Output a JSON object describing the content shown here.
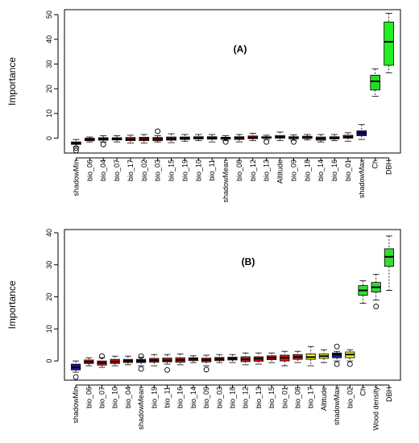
{
  "chart_data": [
    {
      "type": "box",
      "panel_label": "(A)",
      "ylabel": "Importance",
      "ylim": [
        -6,
        52
      ],
      "yticks": [
        0,
        10,
        20,
        30,
        40,
        50
      ],
      "grid": false,
      "categories": [
        "shadowMin",
        "bio_06",
        "bio_04",
        "bio_07",
        "bio_17",
        "bio_02",
        "bio_03",
        "bio_15",
        "bio_19",
        "bio_10",
        "bio_11",
        "shadowMean",
        "bio_08",
        "bio_12",
        "bio_13",
        "Altitude",
        "bio_09",
        "bio_18",
        "bio_14",
        "bio_16",
        "bio_01",
        "shadowMax",
        "Ch",
        "DBH"
      ],
      "colors": [
        "#1a1aa6",
        "#d41a1a",
        "#d41a1a",
        "#d41a1a",
        "#d41a1a",
        "#d41a1a",
        "#d41a1a",
        "#d41a1a",
        "#d41a1a",
        "#d41a1a",
        "#d41a1a",
        "#1a1aa6",
        "#d41a1a",
        "#d41a1a",
        "#d41a1a",
        "#d41a1a",
        "#d41a1a",
        "#d41a1a",
        "#d41a1a",
        "#d41a1a",
        "#d41a1a",
        "#1a1aa6",
        "#22dd22",
        "#22ee22"
      ],
      "boxes": [
        {
          "min": -3.5,
          "q1": -2.5,
          "median": -2.0,
          "q3": -1.5,
          "max": -0.5,
          "outliers": [
            -5.0,
            -4.0
          ]
        },
        {
          "min": -1.5,
          "q1": -1.0,
          "median": -0.5,
          "q3": 0.0,
          "max": 0.5,
          "outliers": []
        },
        {
          "min": -1.5,
          "q1": -0.8,
          "median": -0.3,
          "q3": 0.2,
          "max": 1.0,
          "outliers": [
            -2.5
          ]
        },
        {
          "min": -1.5,
          "q1": -0.7,
          "median": -0.3,
          "q3": 0.2,
          "max": 1.0,
          "outliers": []
        },
        {
          "min": -2.0,
          "q1": -1.0,
          "median": -0.4,
          "q3": 0.3,
          "max": 1.2,
          "outliers": []
        },
        {
          "min": -2.0,
          "q1": -1.0,
          "median": -0.3,
          "q3": 0.4,
          "max": 1.5,
          "outliers": []
        },
        {
          "min": -1.5,
          "q1": -1.0,
          "median": -0.3,
          "q3": 0.3,
          "max": 1.0,
          "outliers": [
            2.8
          ]
        },
        {
          "min": -1.8,
          "q1": -0.8,
          "median": -0.2,
          "q3": 0.5,
          "max": 1.8,
          "outliers": []
        },
        {
          "min": -1.2,
          "q1": -0.5,
          "median": 0.0,
          "q3": 0.5,
          "max": 1.5,
          "outliers": []
        },
        {
          "min": -1.0,
          "q1": -0.3,
          "median": 0.1,
          "q3": 0.6,
          "max": 1.5,
          "outliers": []
        },
        {
          "min": -1.5,
          "q1": -0.4,
          "median": 0.1,
          "q3": 0.6,
          "max": 1.5,
          "outliers": []
        },
        {
          "min": -1.0,
          "q1": -0.4,
          "median": 0.0,
          "q3": 0.4,
          "max": 1.0,
          "outliers": [
            -1.5
          ]
        },
        {
          "min": -1.5,
          "q1": -0.5,
          "median": 0.1,
          "q3": 0.6,
          "max": 1.5,
          "outliers": []
        },
        {
          "min": -1.0,
          "q1": -0.2,
          "median": 0.3,
          "q3": 0.9,
          "max": 2.0,
          "outliers": []
        },
        {
          "min": -0.5,
          "q1": 0.0,
          "median": 0.3,
          "q3": 0.6,
          "max": 1.2,
          "outliers": [
            -1.5
          ]
        },
        {
          "min": -1.0,
          "q1": 0.0,
          "median": 0.5,
          "q3": 1.1,
          "max": 2.5,
          "outliers": []
        },
        {
          "min": -0.8,
          "q1": -0.2,
          "median": 0.2,
          "q3": 0.6,
          "max": 1.3,
          "outliers": [
            -1.5
          ]
        },
        {
          "min": -0.7,
          "q1": -0.1,
          "median": 0.3,
          "q3": 0.8,
          "max": 1.5,
          "outliers": []
        },
        {
          "min": -1.5,
          "q1": -0.8,
          "median": -0.1,
          "q3": 0.5,
          "max": 1.5,
          "outliers": []
        },
        {
          "min": -1.0,
          "q1": -0.3,
          "median": 0.1,
          "q3": 0.6,
          "max": 1.5,
          "outliers": []
        },
        {
          "min": -1.2,
          "q1": 0.0,
          "median": 0.5,
          "q3": 1.2,
          "max": 2.2,
          "outliers": []
        },
        {
          "min": -0.5,
          "q1": 1.0,
          "median": 2.0,
          "q3": 3.0,
          "max": 5.5,
          "outliers": []
        },
        {
          "min": 17.0,
          "q1": 19.5,
          "median": 23.0,
          "q3": 25.5,
          "max": 28.0,
          "outliers": []
        },
        {
          "min": 26.5,
          "q1": 29.5,
          "median": 39.0,
          "q3": 47.0,
          "max": 50.5,
          "outliers": []
        }
      ]
    },
    {
      "type": "box",
      "panel_label": "(B)",
      "ylabel": "Importance",
      "ylim": [
        -6,
        41
      ],
      "yticks": [
        0,
        10,
        20,
        30,
        40
      ],
      "grid": false,
      "categories": [
        "shadowMin",
        "bio_06",
        "bio_07",
        "bio_10",
        "bio_04",
        "shadowMean",
        "bio_19",
        "bio_11",
        "bio_16",
        "bio_14",
        "bio_09",
        "bio_03",
        "bio_18",
        "bio_12",
        "bio_13",
        "bio_15",
        "bio_01",
        "bio_08",
        "bio_17",
        "Altitude",
        "shadowMax",
        "bio_02",
        "Ch",
        "Wood density",
        "DBH"
      ],
      "colors": [
        "#1a1aa6",
        "#d41a1a",
        "#d41a1a",
        "#d41a1a",
        "#d41a1a",
        "#1a1aa6",
        "#d41a1a",
        "#d41a1a",
        "#d41a1a",
        "#d41a1a",
        "#d41a1a",
        "#d41a1a",
        "#d41a1a",
        "#d41a1a",
        "#d41a1a",
        "#d41a1a",
        "#d41a1a",
        "#d41a1a",
        "#eeee22",
        "#eeee22",
        "#1a1aa6",
        "#eeee22",
        "#33dd33",
        "#33dd33",
        "#33dd33"
      ],
      "boxes": [
        {
          "min": -3.5,
          "q1": -2.8,
          "median": -2.0,
          "q3": -1.0,
          "max": 0.0,
          "outliers": [
            -5.0
          ]
        },
        {
          "min": -1.5,
          "q1": -0.8,
          "median": -0.3,
          "q3": 0.3,
          "max": 1.0,
          "outliers": []
        },
        {
          "min": -2.0,
          "q1": -1.3,
          "median": -0.6,
          "q3": 0.0,
          "max": 1.0,
          "outliers": [
            1.5
          ]
        },
        {
          "min": -1.5,
          "q1": -0.8,
          "median": -0.2,
          "q3": 0.5,
          "max": 1.5,
          "outliers": []
        },
        {
          "min": -1.2,
          "q1": -0.5,
          "median": 0.0,
          "q3": 0.5,
          "max": 1.5,
          "outliers": []
        },
        {
          "min": -1.5,
          "q1": -0.5,
          "median": 0.0,
          "q3": 0.5,
          "max": 1.2,
          "outliers": [
            -2.5,
            1.5
          ]
        },
        {
          "min": -1.5,
          "q1": -0.4,
          "median": 0.2,
          "q3": 0.8,
          "max": 2.0,
          "outliers": []
        },
        {
          "min": -1.0,
          "q1": -0.3,
          "median": 0.2,
          "q3": 0.9,
          "max": 2.0,
          "outliers": [
            -2.8
          ]
        },
        {
          "min": -1.2,
          "q1": -0.4,
          "median": 0.3,
          "q3": 1.0,
          "max": 2.2,
          "outliers": []
        },
        {
          "min": -0.5,
          "q1": 0.1,
          "median": 0.6,
          "q3": 1.0,
          "max": 1.6,
          "outliers": []
        },
        {
          "min": -1.5,
          "q1": -0.3,
          "median": 0.3,
          "q3": 0.9,
          "max": 1.8,
          "outliers": [
            -2.7
          ]
        },
        {
          "min": -0.5,
          "q1": 0.1,
          "median": 0.6,
          "q3": 1.1,
          "max": 2.0,
          "outliers": []
        },
        {
          "min": -0.5,
          "q1": 0.3,
          "median": 0.7,
          "q3": 1.2,
          "max": 2.0,
          "outliers": []
        },
        {
          "min": -1.2,
          "q1": -0.2,
          "median": 0.5,
          "q3": 1.3,
          "max": 2.5,
          "outliers": []
        },
        {
          "min": -1.0,
          "q1": -0.1,
          "median": 0.7,
          "q3": 1.3,
          "max": 2.5,
          "outliers": []
        },
        {
          "min": -0.5,
          "q1": 0.4,
          "median": 1.0,
          "q3": 1.6,
          "max": 2.5,
          "outliers": []
        },
        {
          "min": -1.5,
          "q1": 0.0,
          "median": 1.0,
          "q3": 1.8,
          "max": 3.0,
          "outliers": []
        },
        {
          "min": -0.5,
          "q1": 0.5,
          "median": 1.2,
          "q3": 2.0,
          "max": 3.0,
          "outliers": []
        },
        {
          "min": -1.5,
          "q1": 0.5,
          "median": 1.2,
          "q3": 2.2,
          "max": 4.5,
          "outliers": []
        },
        {
          "min": -0.5,
          "q1": 0.8,
          "median": 1.5,
          "q3": 2.2,
          "max": 3.5,
          "outliers": []
        },
        {
          "min": 0.0,
          "q1": 1.0,
          "median": 2.0,
          "q3": 2.5,
          "max": 3.0,
          "outliers": [
            -1.0,
            4.5
          ]
        },
        {
          "min": 0.0,
          "q1": 1.0,
          "median": 2.0,
          "q3": 2.8,
          "max": 3.5,
          "outliers": [
            -1.0
          ]
        },
        {
          "min": 18.0,
          "q1": 20.5,
          "median": 22.0,
          "q3": 23.5,
          "max": 25.0,
          "outliers": []
        },
        {
          "min": 19.0,
          "q1": 21.5,
          "median": 23.0,
          "q3": 24.5,
          "max": 27.0,
          "outliers": [
            17.0
          ]
        },
        {
          "min": 22.0,
          "q1": 29.5,
          "median": 32.5,
          "q3": 35.0,
          "max": 39.0,
          "outliers": []
        }
      ]
    }
  ]
}
